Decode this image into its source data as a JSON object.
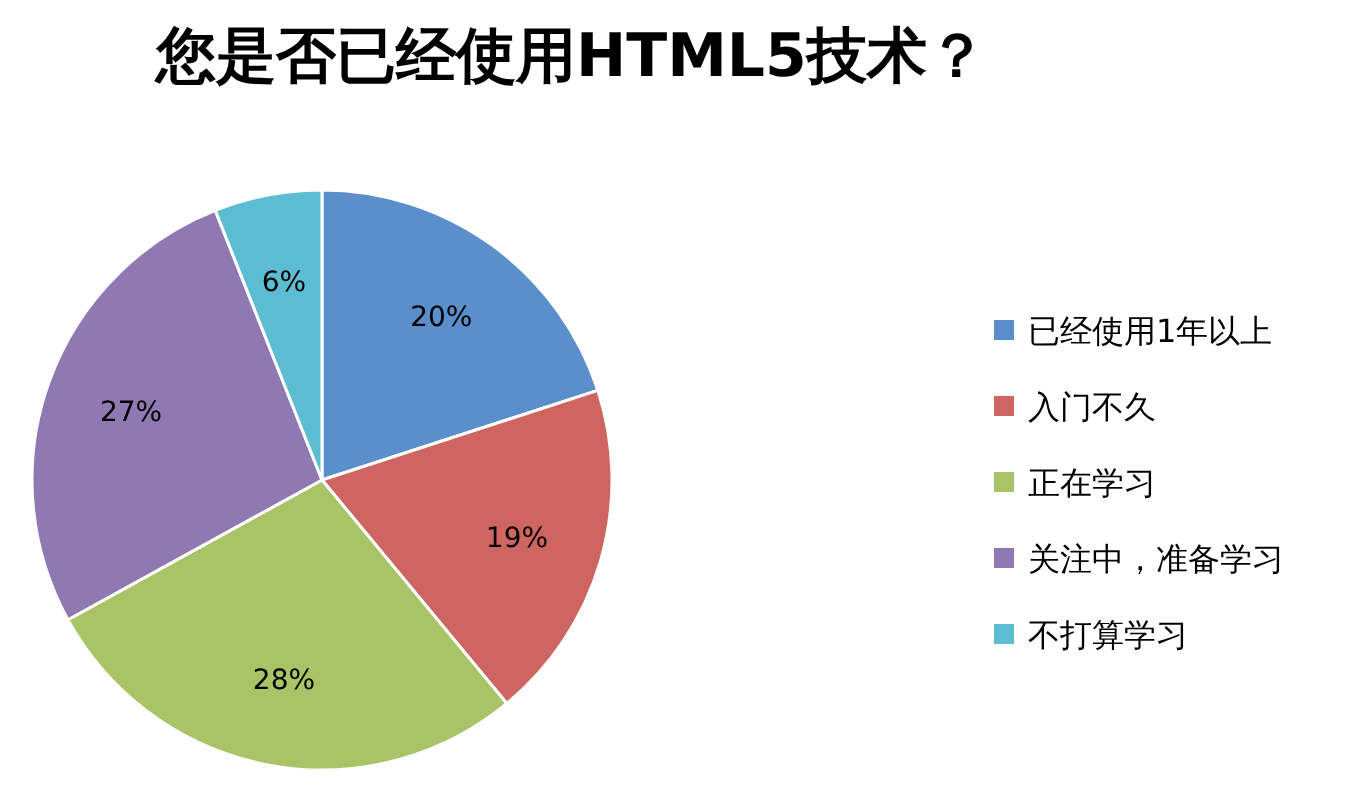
{
  "chart_data": {
    "type": "pie",
    "title": "您是否已经使用HTML5技术？",
    "categories": [
      "已经使用1年以上",
      "入门不久",
      "正在学习",
      "关注中，准备学习",
      "不打算学习"
    ],
    "values": [
      20,
      19,
      28,
      27,
      6
    ],
    "value_labels": [
      "20%",
      "19%",
      "28%",
      "27%",
      "6%"
    ],
    "colors": [
      "#5b8fcb",
      "#cf6560",
      "#a8c466",
      "#9079b3",
      "#5bbcd2"
    ],
    "legend": "right"
  }
}
